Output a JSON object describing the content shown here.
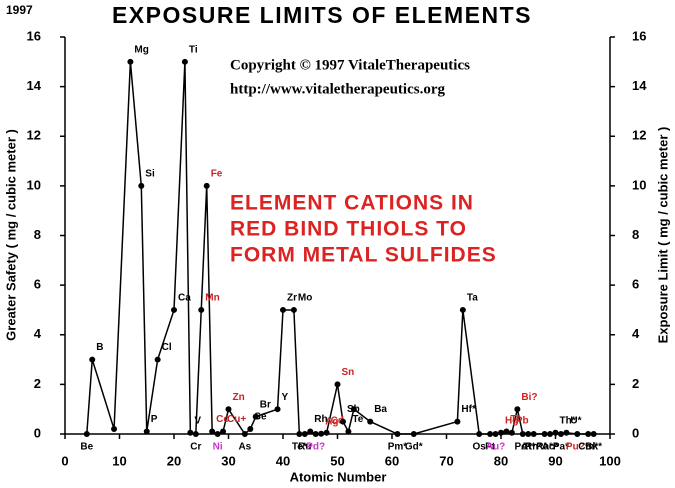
{
  "chart_data": {
    "type": "line",
    "title": "EXPOSURE LIMITS OF ELEMENTS",
    "annotations": [
      "1997",
      "Copyright © 1997 VitaleTherapeutics",
      "http://www.vitaletherapeutics.org",
      "ELEMENT CATIONS IN",
      "RED BIND THIOLS TO",
      "FORM METAL SULFIDES"
    ],
    "xlabel": "Atomic Number",
    "ylabel": "Greater Safety ( mg / cubic meter )",
    "y2label": "Exposure Limit ( mg / cubic meter )",
    "xlim": [
      0,
      100
    ],
    "xticks": [
      0,
      10,
      20,
      30,
      40,
      50,
      60,
      70,
      80,
      90,
      100
    ],
    "ylim": [
      0,
      16
    ],
    "yticks": [
      0,
      2,
      4,
      6,
      8,
      10,
      12,
      14,
      16
    ],
    "y2lim": [
      0,
      16
    ],
    "y2ticks": [
      0,
      2,
      4,
      6,
      8,
      10,
      12,
      14,
      16
    ],
    "color": "#000000",
    "x": [
      4,
      5,
      9,
      12,
      14,
      15,
      17,
      20,
      22,
      23,
      24,
      25,
      26,
      27,
      28,
      29,
      30,
      33,
      34,
      35,
      39,
      40,
      42,
      43,
      44,
      45,
      46,
      47,
      48,
      50,
      51,
      52,
      53,
      56,
      61,
      64,
      72,
      73,
      76,
      78,
      79,
      80,
      81,
      82,
      83,
      84,
      85,
      86,
      88,
      89,
      90,
      91,
      92,
      94,
      96,
      97
    ],
    "values": [
      0,
      3,
      0.2,
      15,
      10,
      0.1,
      3,
      5,
      15,
      0.05,
      0,
      5,
      10,
      0.1,
      0,
      0.1,
      1,
      0,
      0.2,
      0.7,
      1,
      5,
      5,
      0,
      0,
      0.1,
      0,
      0.01,
      0.05,
      2,
      0.5,
      0.1,
      1,
      0.5,
      0,
      0,
      0.5,
      5,
      0,
      0,
      0,
      0.05,
      0.1,
      0.05,
      1,
      0,
      0,
      0,
      0,
      0,
      0.05,
      0,
      0.05,
      0,
      0,
      0
    ],
    "point_labels": [
      "Be",
      "B",
      null,
      "Mg",
      "Si",
      "P",
      "Cl",
      "Ca",
      "Ti",
      "V",
      "Cr",
      "Mn",
      "Fe",
      "Co",
      "Ni",
      "Cu+",
      "Zn",
      "As",
      "Se",
      "Br",
      "Y",
      "Zr",
      "Mo",
      "Tc*",
      "Ru",
      "Rh",
      "Pd?",
      "Ag",
      "Cd",
      "Sn",
      "Sb",
      "Te",
      null,
      "Ba",
      "Pm*",
      "Gd*",
      "Hf*",
      "Ta",
      "Os",
      "Pt",
      "Au?",
      "Hg",
      "Tl",
      "Pb",
      "Bi?",
      "Po*",
      "At*",
      "Rn*",
      "Ra*",
      "Ac*",
      "Th*",
      "Pa*",
      "U*",
      "Pu?*",
      "Cm*",
      "Bk*"
    ],
    "point_label_colors": [
      "#000000",
      "#000000",
      "#000000",
      "#000000",
      "#000000",
      "#000000",
      "#000000",
      "#000000",
      "#000000",
      "#000000",
      "#000000",
      "#cc2222",
      "#cc2222",
      "#cc2222",
      "#cc33cc",
      "#cc2222",
      "#cc2222",
      "#000000",
      "#000000",
      "#000000",
      "#000000",
      "#000000",
      "#000000",
      "#000000",
      "#000000",
      "#000000",
      "#cc33cc",
      "#cc2222",
      "#cc2222",
      "#cc2222",
      "#000000",
      "#000000",
      "#000000",
      "#000000",
      "#000000",
      "#000000",
      "#000000",
      "#000000",
      "#000000",
      "#000000",
      "#cc33cc",
      "#cc2222",
      "#cc2222",
      "#cc2222",
      "#cc2222",
      "#000000",
      "#000000",
      "#000000",
      "#000000",
      "#000000",
      "#000000",
      "#000000",
      "#000000",
      "#cc2222",
      "#000000",
      "#000000"
    ]
  }
}
